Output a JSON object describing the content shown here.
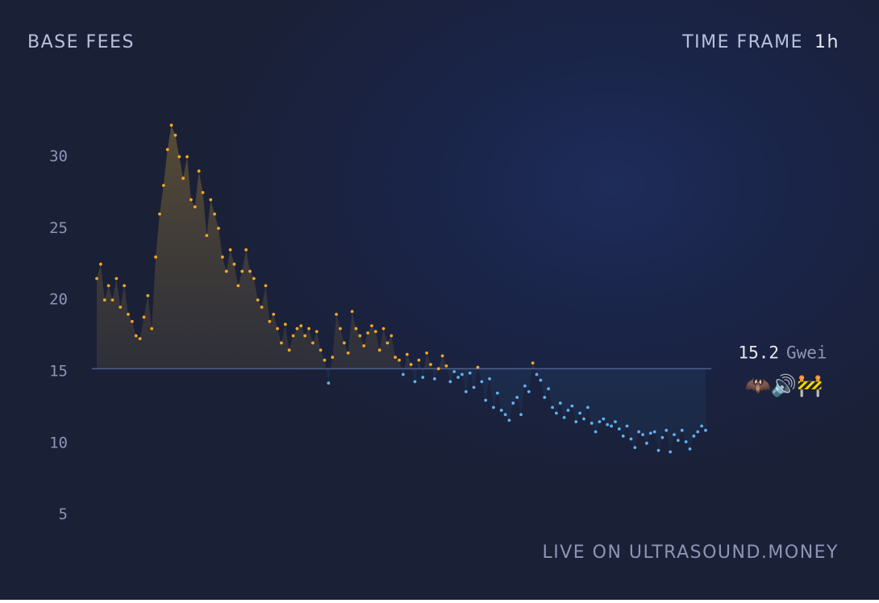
{
  "chart_data": {
    "type": "scatter",
    "title": "BASE FEES",
    "time_frame_label": "TIME FRAME",
    "time_frame": "1h",
    "footer": "LIVE ON ULTRASOUND.MONEY",
    "current_value": 15.2,
    "current_unit": "Gwei",
    "current_emoji": "🦇🔊🚧",
    "ylim": [
      3.8,
      32.5
    ],
    "yticks": [
      5,
      10,
      15,
      20,
      25,
      30
    ],
    "above_color": "#f5a623",
    "below_color": "#5eb1f0",
    "series": [
      {
        "name": "base fee",
        "values": [
          21.5,
          22.5,
          20,
          21,
          20,
          21.5,
          19.5,
          21,
          19,
          18.5,
          17.5,
          17.3,
          18.8,
          20.3,
          18,
          23,
          26,
          28,
          30.5,
          32.2,
          31.5,
          30,
          28.5,
          30,
          27,
          26.5,
          29,
          27.5,
          24.5,
          27,
          26,
          25,
          23,
          22,
          23.5,
          22.5,
          21,
          22,
          23.5,
          22,
          21.5,
          20,
          19.5,
          21,
          18.5,
          19,
          18,
          17,
          18.3,
          16.5,
          17.5,
          18,
          18.2,
          17.5,
          18,
          17,
          17.8,
          16.5,
          15.8,
          14.2,
          16,
          19,
          18,
          17,
          16.3,
          19.2,
          18,
          17.5,
          16.8,
          17.7,
          18.2,
          17.8,
          16.5,
          18,
          17,
          17.5,
          16,
          15.8,
          14.8,
          16.2,
          15.5,
          14.3,
          15.8,
          14.6,
          16.3,
          15.5,
          14.5,
          15.2,
          16.1,
          15.4,
          14.3,
          15,
          14.6,
          14.8,
          13.6,
          14.9,
          13.9,
          15.3,
          14.3,
          13,
          14.5,
          12.5,
          13.5,
          12.3,
          12,
          11.6,
          12.8,
          13.2,
          12,
          14,
          13.6,
          15.6,
          14.8,
          14.4,
          13.2,
          13.8,
          12.5,
          12.1,
          12.8,
          11.8,
          12.3,
          12.6,
          11.5,
          12.1,
          11.7,
          12.5,
          11.4,
          10.8,
          11.5,
          11.7,
          11.3,
          11.2,
          11.5,
          11,
          10.5,
          11.2,
          10.3,
          9.7,
          10.8,
          10.6,
          10,
          10.7,
          10.8,
          9.5,
          10.4,
          10.9,
          9.4,
          10.6,
          10.2,
          10.9,
          10.1,
          9.6,
          10.5,
          10.8,
          11.2,
          10.9
        ]
      }
    ]
  }
}
